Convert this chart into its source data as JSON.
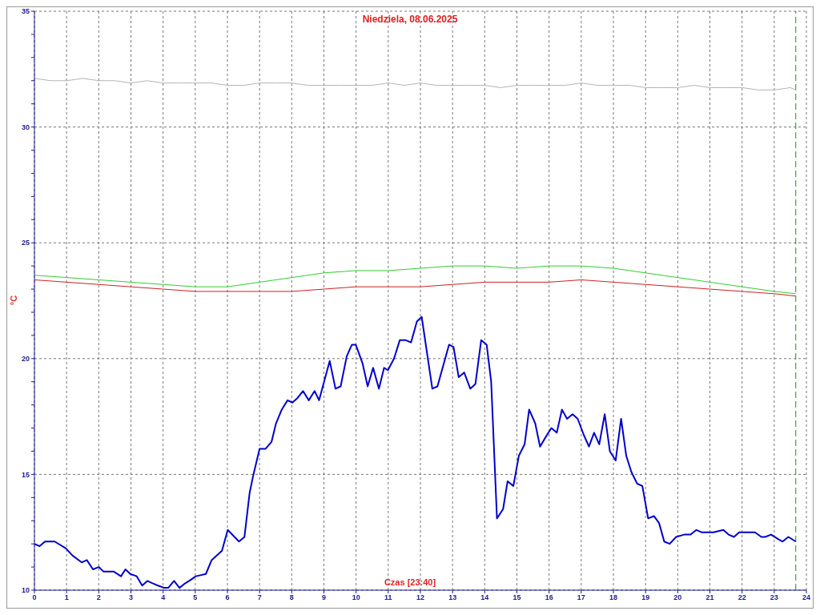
{
  "chart_data": {
    "type": "line",
    "title": "Niedziela, 08.06.2025",
    "xlabel": "Czas [23:40]",
    "ylabel": "°C",
    "xlim": [
      0,
      24
    ],
    "xticks": [
      0,
      1,
      2,
      3,
      4,
      5,
      6,
      7,
      8,
      9,
      10,
      11,
      12,
      13,
      14,
      15,
      16,
      17,
      18,
      19,
      20,
      21,
      22,
      23,
      24
    ],
    "ylim": [
      10,
      35
    ],
    "yticks": [
      10,
      {
        "value": 11,
        "label": null
      },
      {
        "value": 12,
        "label": null
      },
      {
        "value": 13,
        "label": null
      },
      {
        "value": 14,
        "label": null
      },
      15,
      {
        "value": 16,
        "label": null
      },
      {
        "value": 17,
        "label": null
      },
      {
        "value": 18,
        "label": null
      },
      {
        "value": 19,
        "label": null
      },
      20,
      {
        "value": 21,
        "label": null
      },
      {
        "value": 22,
        "label": null
      },
      {
        "value": 23,
        "label": null
      },
      {
        "value": 24,
        "label": null
      },
      25,
      {
        "value": 26,
        "label": null
      },
      {
        "value": 27,
        "label": null
      },
      {
        "value": 28,
        "label": null
      },
      {
        "value": 29,
        "label": null
      },
      30,
      {
        "value": 31,
        "label": null
      },
      {
        "value": 32,
        "label": null
      },
      {
        "value": 33,
        "label": null
      },
      {
        "value": 34,
        "label": null
      },
      35
    ],
    "grid": true,
    "marker": "none",
    "line_style": "solid",
    "ref_lines": [
      {
        "axis": "x",
        "value": 23.67,
        "color": "#228b22",
        "line_style": "dashed"
      }
    ],
    "series": [
      {
        "color": "#b4b4b4",
        "x": [
          0,
          0.5,
          1,
          1.5,
          2,
          2.5,
          3,
          3.5,
          4,
          4.5,
          5,
          5.5,
          6,
          6.5,
          7,
          7.5,
          8,
          8.5,
          9,
          9.5,
          10,
          10.5,
          11,
          11.5,
          12,
          12.5,
          13,
          13.5,
          14,
          14.5,
          15,
          15.5,
          16,
          16.5,
          17,
          17.5,
          18,
          18.5,
          19,
          19.5,
          20,
          20.5,
          21,
          21.5,
          22,
          22.5,
          23,
          23.5,
          23.67
        ],
        "values": [
          32.1,
          32.0,
          32.0,
          32.1,
          32.0,
          32.0,
          31.9,
          32.0,
          31.9,
          31.9,
          31.9,
          31.9,
          31.8,
          31.8,
          31.9,
          31.9,
          31.9,
          31.8,
          31.8,
          31.8,
          31.8,
          31.8,
          31.9,
          31.8,
          31.9,
          31.8,
          31.8,
          31.8,
          31.8,
          31.7,
          31.8,
          31.8,
          31.8,
          31.8,
          31.9,
          31.8,
          31.8,
          31.8,
          31.7,
          31.7,
          31.7,
          31.8,
          31.7,
          31.7,
          31.7,
          31.6,
          31.6,
          31.7,
          31.6
        ]
      },
      {
        "color": "#33cc33",
        "x": [
          0,
          1,
          2,
          3,
          4,
          5,
          6,
          7,
          8,
          9,
          10,
          11,
          12,
          13,
          14,
          15,
          16,
          17,
          18,
          19,
          20,
          21,
          22,
          23,
          23.67
        ],
        "values": [
          23.6,
          23.5,
          23.4,
          23.3,
          23.2,
          23.1,
          23.1,
          23.3,
          23.5,
          23.7,
          23.8,
          23.8,
          23.9,
          24.0,
          24.0,
          23.9,
          24.0,
          24.0,
          23.9,
          23.7,
          23.5,
          23.3,
          23.1,
          22.9,
          22.8
        ]
      },
      {
        "color": "#cc2222",
        "x": [
          0,
          1,
          2,
          3,
          4,
          5,
          6,
          7,
          8,
          9,
          10,
          11,
          12,
          13,
          14,
          15,
          16,
          17,
          18,
          19,
          20,
          21,
          22,
          23,
          23.67
        ],
        "values": [
          23.4,
          23.3,
          23.2,
          23.1,
          23.0,
          22.9,
          22.9,
          22.9,
          22.9,
          23.0,
          23.1,
          23.1,
          23.1,
          23.2,
          23.3,
          23.3,
          23.3,
          23.4,
          23.3,
          23.2,
          23.1,
          23.0,
          22.9,
          22.8,
          22.7
        ]
      },
      {
        "color": "#0000cc",
        "x": [
          0,
          0.16,
          0.33,
          0.63,
          0.98,
          1.18,
          1.47,
          1.63,
          1.82,
          2.0,
          2.15,
          2.47,
          2.69,
          2.83,
          2.98,
          3.18,
          3.35,
          3.51,
          3.67,
          3.84,
          4.04,
          4.16,
          4.34,
          4.51,
          4.69,
          4.81,
          5.02,
          5.33,
          5.51,
          5.83,
          6.01,
          6.36,
          6.53,
          6.69,
          6.81,
          7.0,
          7.18,
          7.37,
          7.51,
          7.69,
          7.87,
          8.02,
          8.18,
          8.35,
          8.53,
          8.71,
          8.85,
          9.18,
          9.36,
          9.52,
          9.71,
          9.87,
          9.99,
          10.2,
          10.36,
          10.53,
          10.71,
          10.87,
          10.99,
          11.18,
          11.36,
          11.53,
          11.71,
          11.89,
          12.04,
          12.37,
          12.53,
          12.89,
          13.03,
          13.19,
          13.36,
          13.55,
          13.71,
          13.89,
          14.06,
          14.2,
          14.38,
          14.57,
          14.71,
          14.89,
          15.06,
          15.24,
          15.38,
          15.57,
          15.72,
          15.89,
          16.07,
          16.24,
          16.4,
          16.56,
          16.73,
          16.89,
          17.08,
          17.24,
          17.4,
          17.56,
          17.73,
          17.89,
          18.07,
          18.24,
          18.4,
          18.56,
          18.74,
          18.9,
          19.08,
          19.26,
          19.42,
          19.58,
          19.75,
          19.95,
          20.2,
          20.4,
          20.58,
          20.74,
          20.97,
          21.11,
          21.42,
          21.58,
          21.75,
          21.91,
          22.4,
          22.6,
          22.72,
          22.9,
          23.13,
          23.26,
          23.44,
          23.67
        ],
        "values": [
          12.0,
          11.9,
          12.1,
          12.1,
          11.8,
          11.5,
          11.2,
          11.3,
          10.9,
          11.0,
          10.8,
          10.8,
          10.6,
          10.9,
          10.7,
          10.6,
          10.2,
          10.4,
          10.3,
          10.2,
          10.1,
          10.1,
          10.4,
          10.1,
          10.3,
          10.4,
          10.6,
          10.7,
          11.3,
          11.7,
          12.6,
          12.1,
          12.3,
          14.2,
          15.0,
          16.1,
          16.1,
          16.4,
          17.2,
          17.8,
          18.2,
          18.1,
          18.3,
          18.6,
          18.2,
          18.6,
          18.2,
          19.9,
          18.7,
          18.8,
          20.1,
          20.6,
          20.6,
          19.8,
          18.8,
          19.6,
          18.7,
          19.6,
          19.5,
          20.0,
          20.8,
          20.8,
          20.7,
          21.6,
          21.8,
          18.7,
          18.8,
          20.6,
          20.5,
          19.2,
          19.4,
          18.7,
          18.9,
          20.8,
          20.6,
          19.0,
          13.1,
          13.5,
          14.7,
          14.5,
          15.8,
          16.3,
          17.8,
          17.2,
          16.2,
          16.6,
          17.0,
          16.8,
          17.8,
          17.4,
          17.6,
          17.4,
          16.7,
          16.2,
          16.8,
          16.3,
          17.6,
          16.0,
          15.6,
          17.4,
          15.8,
          15.1,
          14.6,
          14.5,
          13.1,
          13.2,
          12.9,
          12.1,
          12.0,
          12.3,
          12.4,
          12.4,
          12.6,
          12.5,
          12.5,
          12.5,
          12.6,
          12.4,
          12.3,
          12.5,
          12.5,
          12.3,
          12.3,
          12.4,
          12.2,
          12.1,
          12.3,
          12.1
        ]
      }
    ]
  }
}
